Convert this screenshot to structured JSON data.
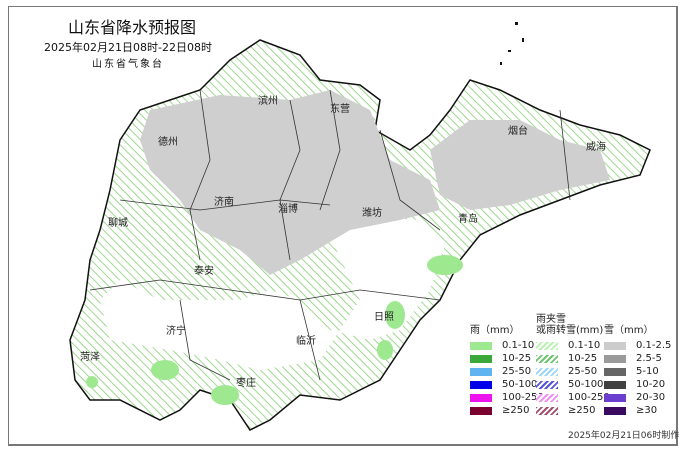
{
  "header": {
    "title": "山东省降水预报图",
    "subtitle": "2025年02月21日08时-22日08时",
    "agency": "山东省气象台"
  },
  "map": {
    "cities": [
      "滨州",
      "东营",
      "德州",
      "烟台",
      "威海",
      "济南",
      "淄博",
      "潍坊",
      "聊城",
      "青岛",
      "泰安",
      "日照",
      "济宁",
      "临沂",
      "菏泽",
      "枣庄"
    ]
  },
  "legend": {
    "rain": {
      "title": "雨（mm）",
      "items": [
        {
          "label": "0.1-10",
          "color": "#9ee890"
        },
        {
          "label": "10-25",
          "color": "#3aa93a"
        },
        {
          "label": "25-50",
          "color": "#5fb4ef"
        },
        {
          "label": "50-100",
          "color": "#0000e8"
        },
        {
          "label": "100-250",
          "color": "#ee12ee"
        },
        {
          "label": "≥250",
          "color": "#7a0030"
        }
      ]
    },
    "sleet": {
      "title": "雨夹雪\n或雨转雪(mm)",
      "items": [
        {
          "label": "0.1-10",
          "color": "#b8f0b0"
        },
        {
          "label": "10-25",
          "color": "#6cc46c"
        },
        {
          "label": "25-50",
          "color": "#9ed6f4"
        },
        {
          "label": "50-100",
          "color": "#5555d8"
        },
        {
          "label": "100-250",
          "color": "#f08ef0"
        },
        {
          "label": "≥250",
          "color": "#a0506c"
        }
      ]
    },
    "snow": {
      "title": "雪（mm）",
      "items": [
        {
          "label": "0.1-2.5",
          "color": "#cccccc"
        },
        {
          "label": "2.5-5",
          "color": "#9a9a9a"
        },
        {
          "label": "5-10",
          "color": "#666666"
        },
        {
          "label": "10-20",
          "color": "#404040"
        },
        {
          "label": "20-30",
          "color": "#6a3fd0"
        },
        {
          "label": "≥30",
          "color": "#3a0a60"
        }
      ]
    }
  },
  "footer": {
    "made": "2025年02月21日06时制作"
  }
}
